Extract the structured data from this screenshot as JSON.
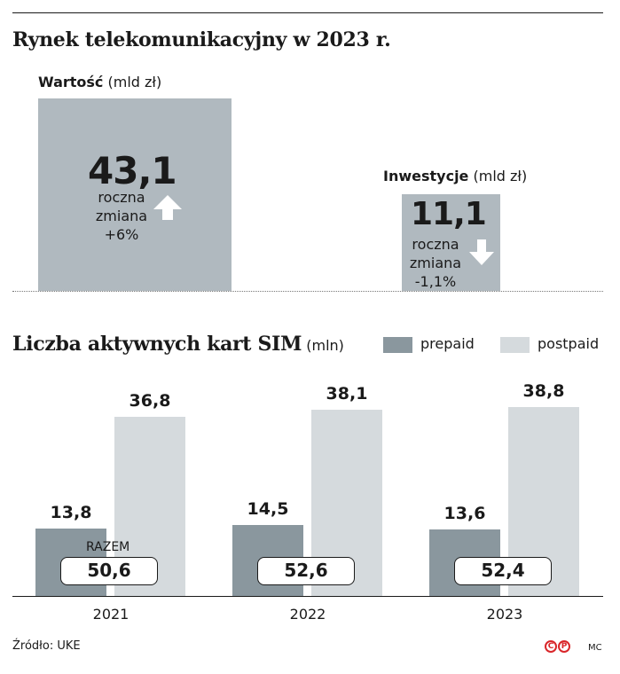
{
  "title": "Rynek telekomunikacyjny w 2023 r.",
  "value_box": {
    "label": "Wartość",
    "unit": "(mld zł)",
    "value": "43,1",
    "change_line1": "roczna",
    "change_line2": "zmiana",
    "change_value": "+6%",
    "direction": "up"
  },
  "invest_box": {
    "label": "Inwestycje",
    "unit": "(mld zł)",
    "value": "11,1",
    "change_line1": "roczna",
    "change_line2": "zmiana",
    "change_value": "-1,1%",
    "direction": "down"
  },
  "colors": {
    "box": "#b0b9bf",
    "prepaid": "#8a979e",
    "postpaid": "#d5dadd",
    "logo": "#d9262a"
  },
  "chart_data": {
    "type": "bar",
    "title": "Liczba aktywnych kart SIM",
    "unit": "(mln)",
    "categories": [
      "2021",
      "2022",
      "2023"
    ],
    "series": [
      {
        "name": "prepaid",
        "values": [
          13.8,
          14.5,
          13.6
        ],
        "labels": [
          "13,8",
          "14,5",
          "13,6"
        ]
      },
      {
        "name": "postpaid",
        "values": [
          36.8,
          38.1,
          38.8
        ],
        "labels": [
          "36,8",
          "38,1",
          "38,8"
        ]
      }
    ],
    "totals_label": "RAZEM",
    "totals": [
      "50,6",
      "52,6",
      "52,4"
    ],
    "ylim": [
      0,
      40
    ]
  },
  "footer": {
    "source": "Źródło: UKE",
    "logo_letters": [
      "C",
      "P"
    ],
    "author": "MC"
  }
}
